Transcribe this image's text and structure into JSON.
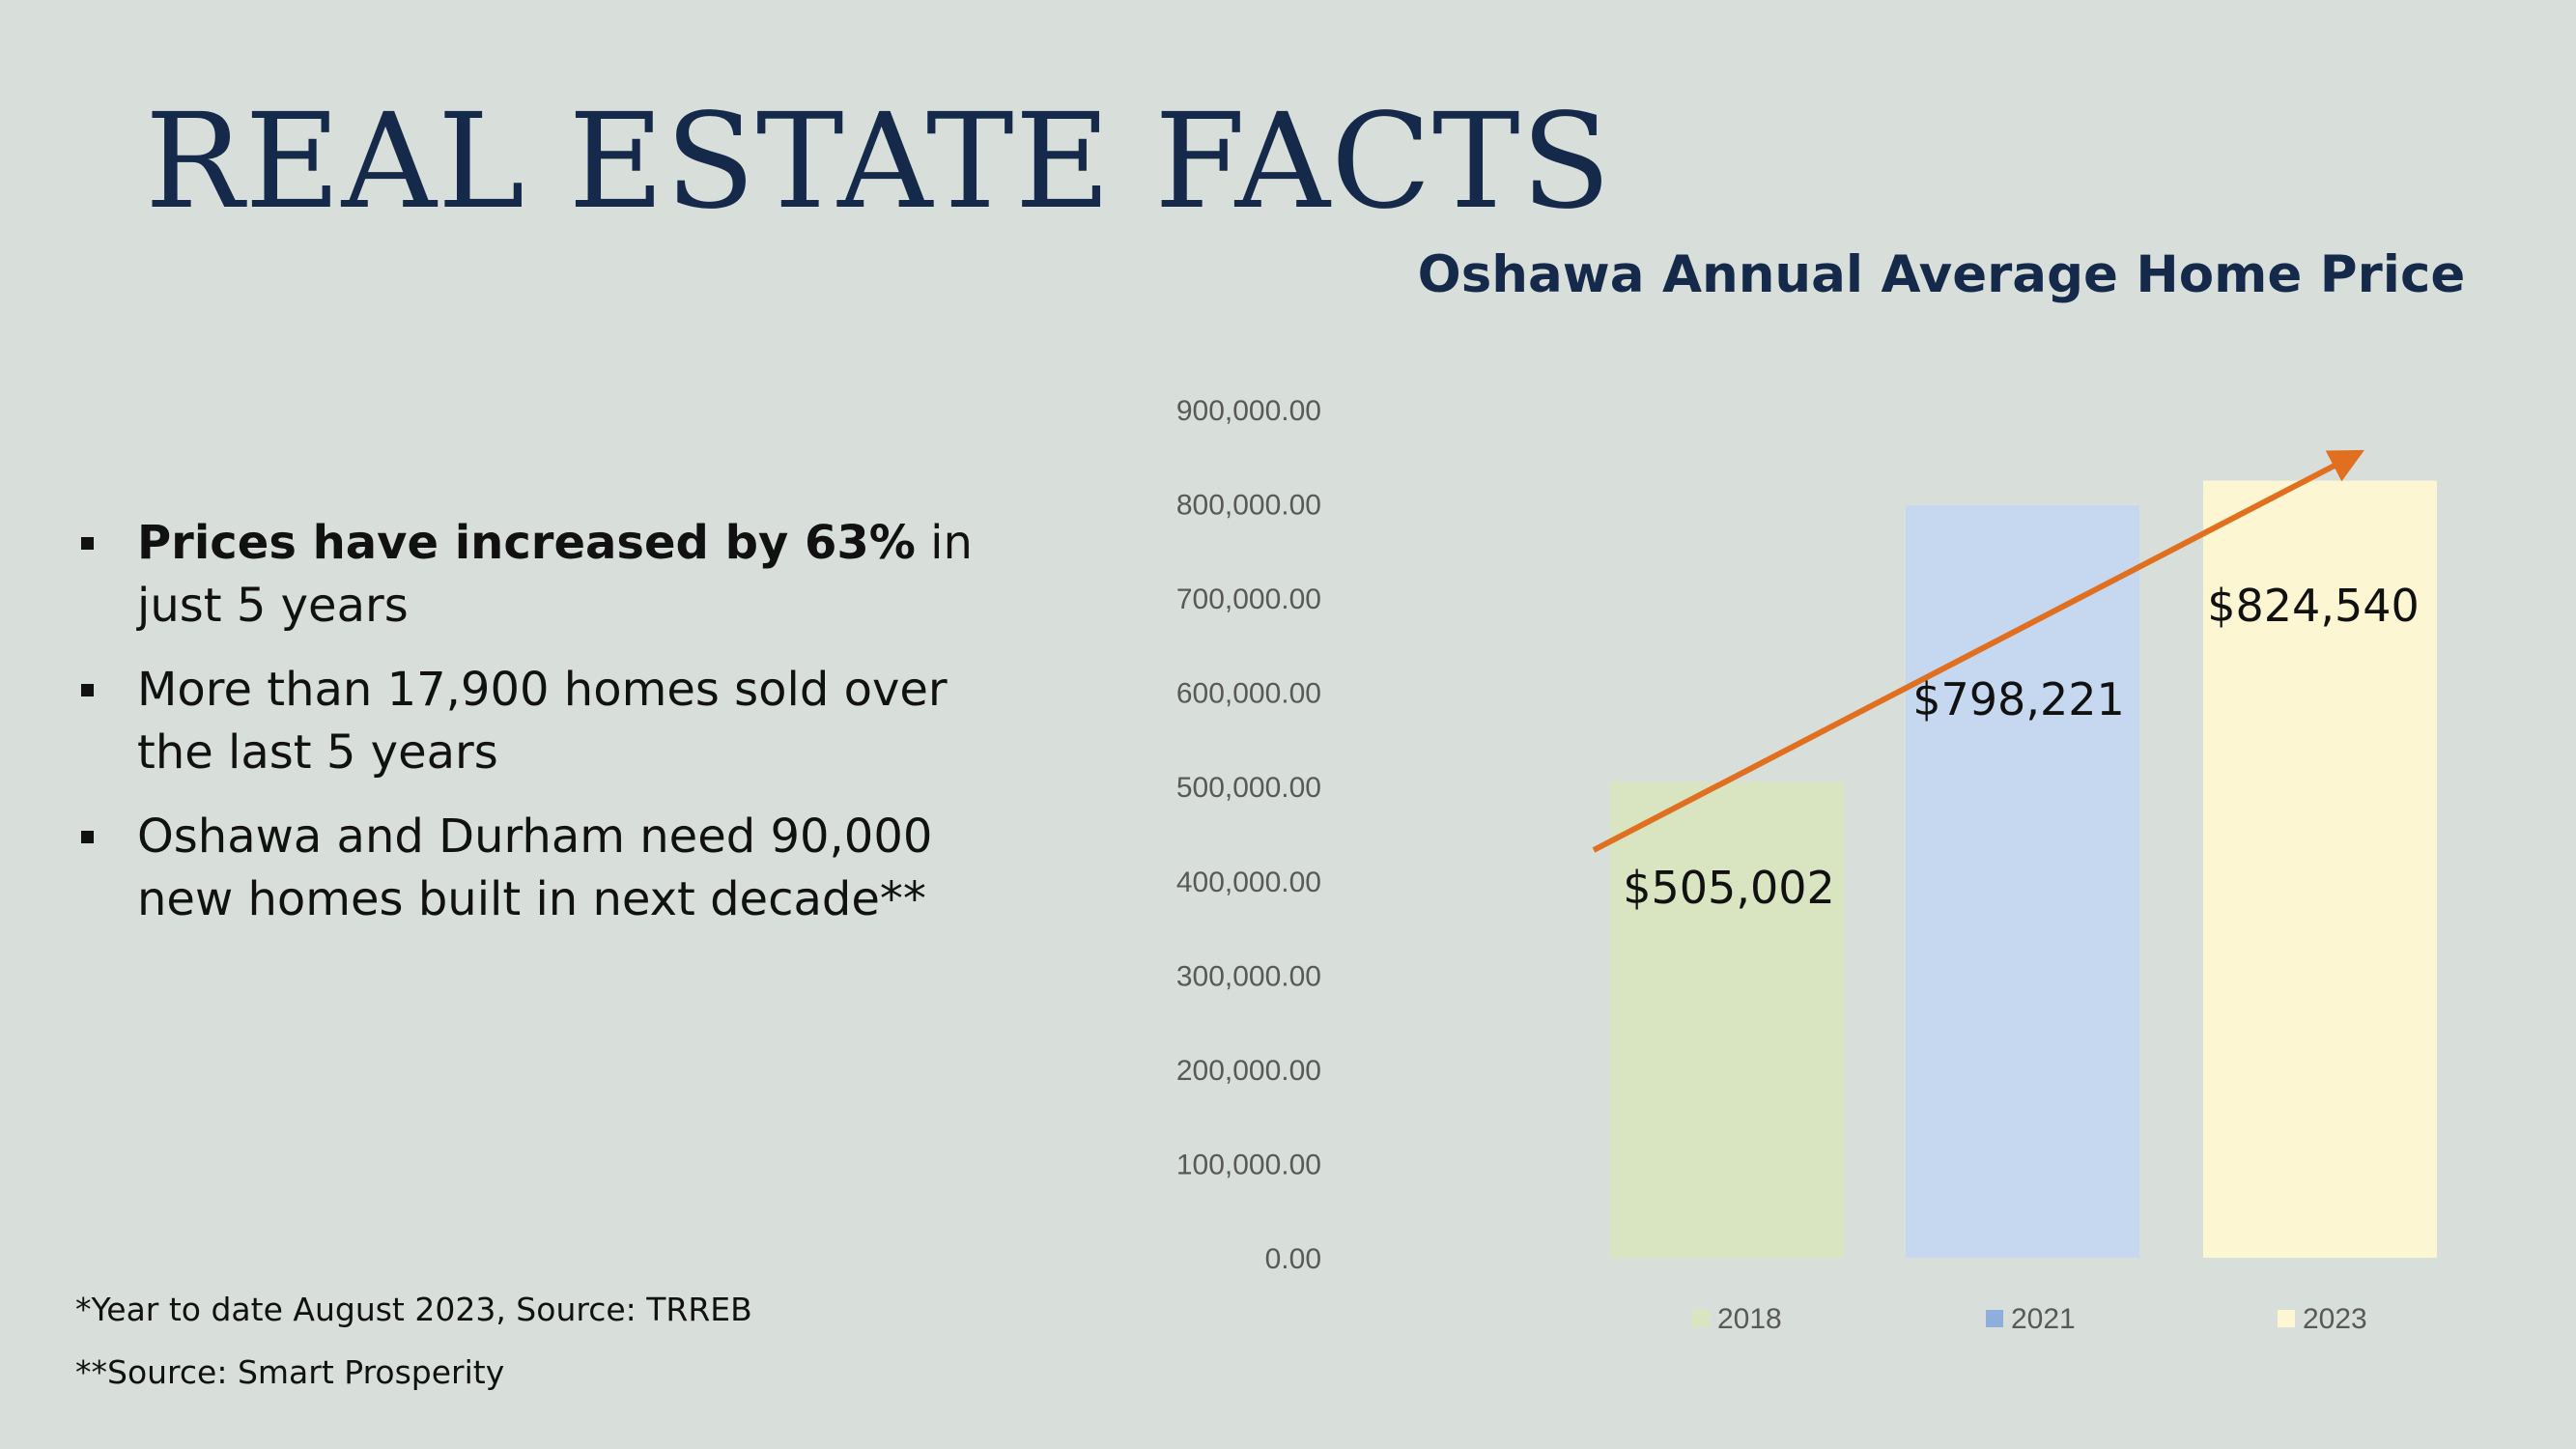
{
  "slide": {
    "title": "REAL ESTATE FACTS",
    "bullets": [
      {
        "bold": "Prices have increased by 63%",
        "text": " in just 5 years"
      },
      {
        "bold": "",
        "text": "More than 17,900 homes sold over the last 5 years"
      },
      {
        "bold": "",
        "text": "Oshawa and Durham need 90,000 new homes built in next decade**"
      }
    ],
    "footnotes": [
      "*Year to date August 2023, Source: TRREB",
      "**Source: Smart Prosperity"
    ]
  },
  "colors": {
    "background": "#d8dfda",
    "title": "#15294a",
    "trend_arrow": "#e07020",
    "bar_2018": "#d9e4c0",
    "bar_2021": "#c6d8ef",
    "bar_2023": "#fdf6d2",
    "legend_2018": "#d9e4c0",
    "legend_2021": "#8eaedb",
    "legend_2023": "#fdf6d2"
  },
  "chart_data": {
    "type": "bar",
    "title": "Oshawa Annual Average Home Price",
    "categories": [
      "2018",
      "2021",
      "2023"
    ],
    "values": [
      505002,
      798221,
      824540
    ],
    "data_labels": [
      "$505,002",
      "$798,221",
      "$824,540"
    ],
    "ylim": [
      0,
      900000
    ],
    "y_ticks": [
      "0.00",
      "100,000.00",
      "200,000.00",
      "300,000.00",
      "400,000.00",
      "500,000.00",
      "600,000.00",
      "700,000.00",
      "800,000.00",
      "900,000.00"
    ],
    "grid": false,
    "legend": [
      "2018",
      "2021",
      "2023"
    ],
    "legend_position": "bottom",
    "trend_arrow": true
  }
}
